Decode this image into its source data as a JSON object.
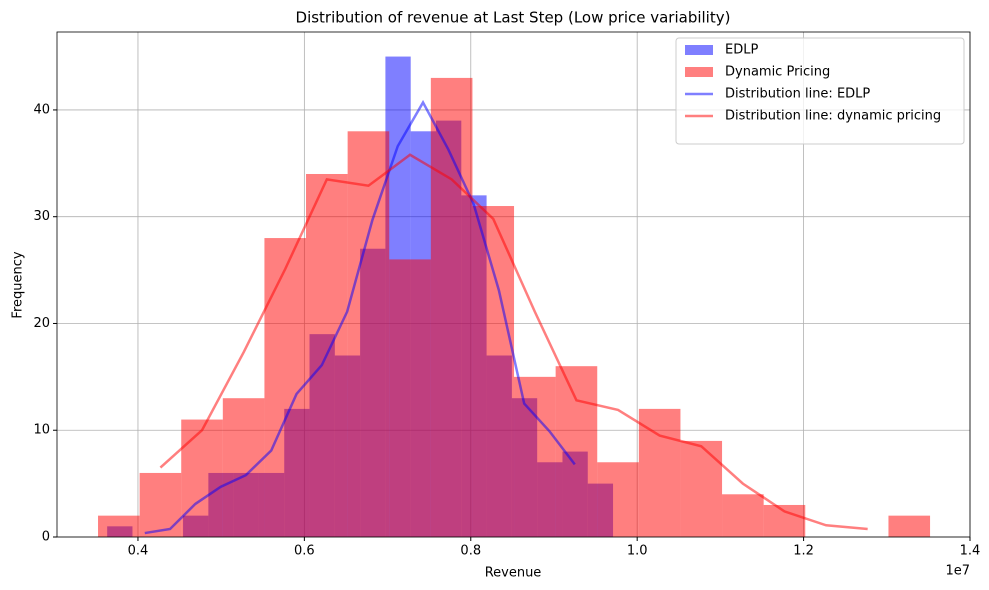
{
  "chart_data": {
    "type": "histogram",
    "title": "Distribution of revenue at Last Step (Low price variability)",
    "x_label": "Revenue",
    "y_label": "Frequency",
    "x_offset_label": "1e7",
    "xlim": [
      3027000,
      14000000
    ],
    "ylim": [
      0,
      47.3
    ],
    "xticks": [
      {
        "value": 4000000,
        "label": "0.4"
      },
      {
        "value": 6000000,
        "label": "0.6"
      },
      {
        "value": 8000000,
        "label": "0.8"
      },
      {
        "value": 10000000,
        "label": "1.0"
      },
      {
        "value": 12000000,
        "label": "1.2"
      },
      {
        "value": 14000000,
        "label": "1.4"
      }
    ],
    "yticks": [
      0,
      10,
      20,
      30,
      40
    ],
    "grid": true,
    "legend": "upper right",
    "alpha": 0.5,
    "series": [
      {
        "name": "EDLP",
        "type": "histogram",
        "color": "#0000ff",
        "bins": [
          3630000,
          3934000,
          4238000,
          4542000,
          4846000,
          5150000,
          5454000,
          5758000,
          6062000,
          6366000,
          6670000,
          6974000,
          7278000,
          7582000,
          7886000,
          8190000,
          8494000,
          8798000,
          9102000,
          9406000,
          9710000
        ],
        "values": [
          1,
          0,
          0,
          2,
          6,
          6,
          6,
          12,
          19,
          17,
          27,
          45,
          38,
          39,
          32,
          17,
          13,
          7,
          8,
          5
        ]
      },
      {
        "name": "Dynamic Pricing",
        "type": "histogram",
        "color": "#ff0000",
        "bins": [
          3520000,
          4020000,
          4520000,
          5020000,
          5520000,
          6020000,
          6520000,
          7020000,
          7520000,
          8020000,
          8520000,
          9020000,
          9520000,
          10020000,
          10520000,
          11020000,
          11520000,
          12020000,
          12520000,
          13020000,
          13520000
        ],
        "values": [
          2,
          6,
          11,
          13,
          28,
          34,
          38,
          26,
          43,
          31,
          15,
          16,
          7,
          12,
          9,
          4,
          3,
          0,
          0,
          2
        ]
      },
      {
        "name": "Distribution line: EDLP",
        "type": "line",
        "color": "#0000ff",
        "x": [
          4082000,
          4386000,
          4690000,
          4994000,
          5298000,
          5602000,
          5906000,
          6210000,
          6514000,
          6818000,
          7122000,
          7426000,
          7730000,
          8034000,
          8338000,
          8642000,
          8946000,
          9250000
        ],
        "values": [
          0.37,
          0.75,
          3.1,
          4.7,
          5.8,
          8.1,
          13.4,
          16.1,
          21.1,
          29.7,
          36.6,
          40.7,
          36.3,
          31.2,
          23.1,
          12.5,
          9.9,
          6.8
        ]
      },
      {
        "name": "Distribution line: dynamic pricing",
        "type": "line",
        "color": "#ff0000",
        "x": [
          4270000,
          4770000,
          5270000,
          5770000,
          6270000,
          6770000,
          7270000,
          7770000,
          8270000,
          8770000,
          9270000,
          9770000,
          10270000,
          10770000,
          11270000,
          11770000,
          12270000,
          12770000
        ],
        "values": [
          6.5,
          10.0,
          17.3,
          25.1,
          33.5,
          32.9,
          35.8,
          33.5,
          29.8,
          21.1,
          12.8,
          11.9,
          9.5,
          8.5,
          5.0,
          2.4,
          1.1,
          0.75
        ]
      }
    ]
  }
}
